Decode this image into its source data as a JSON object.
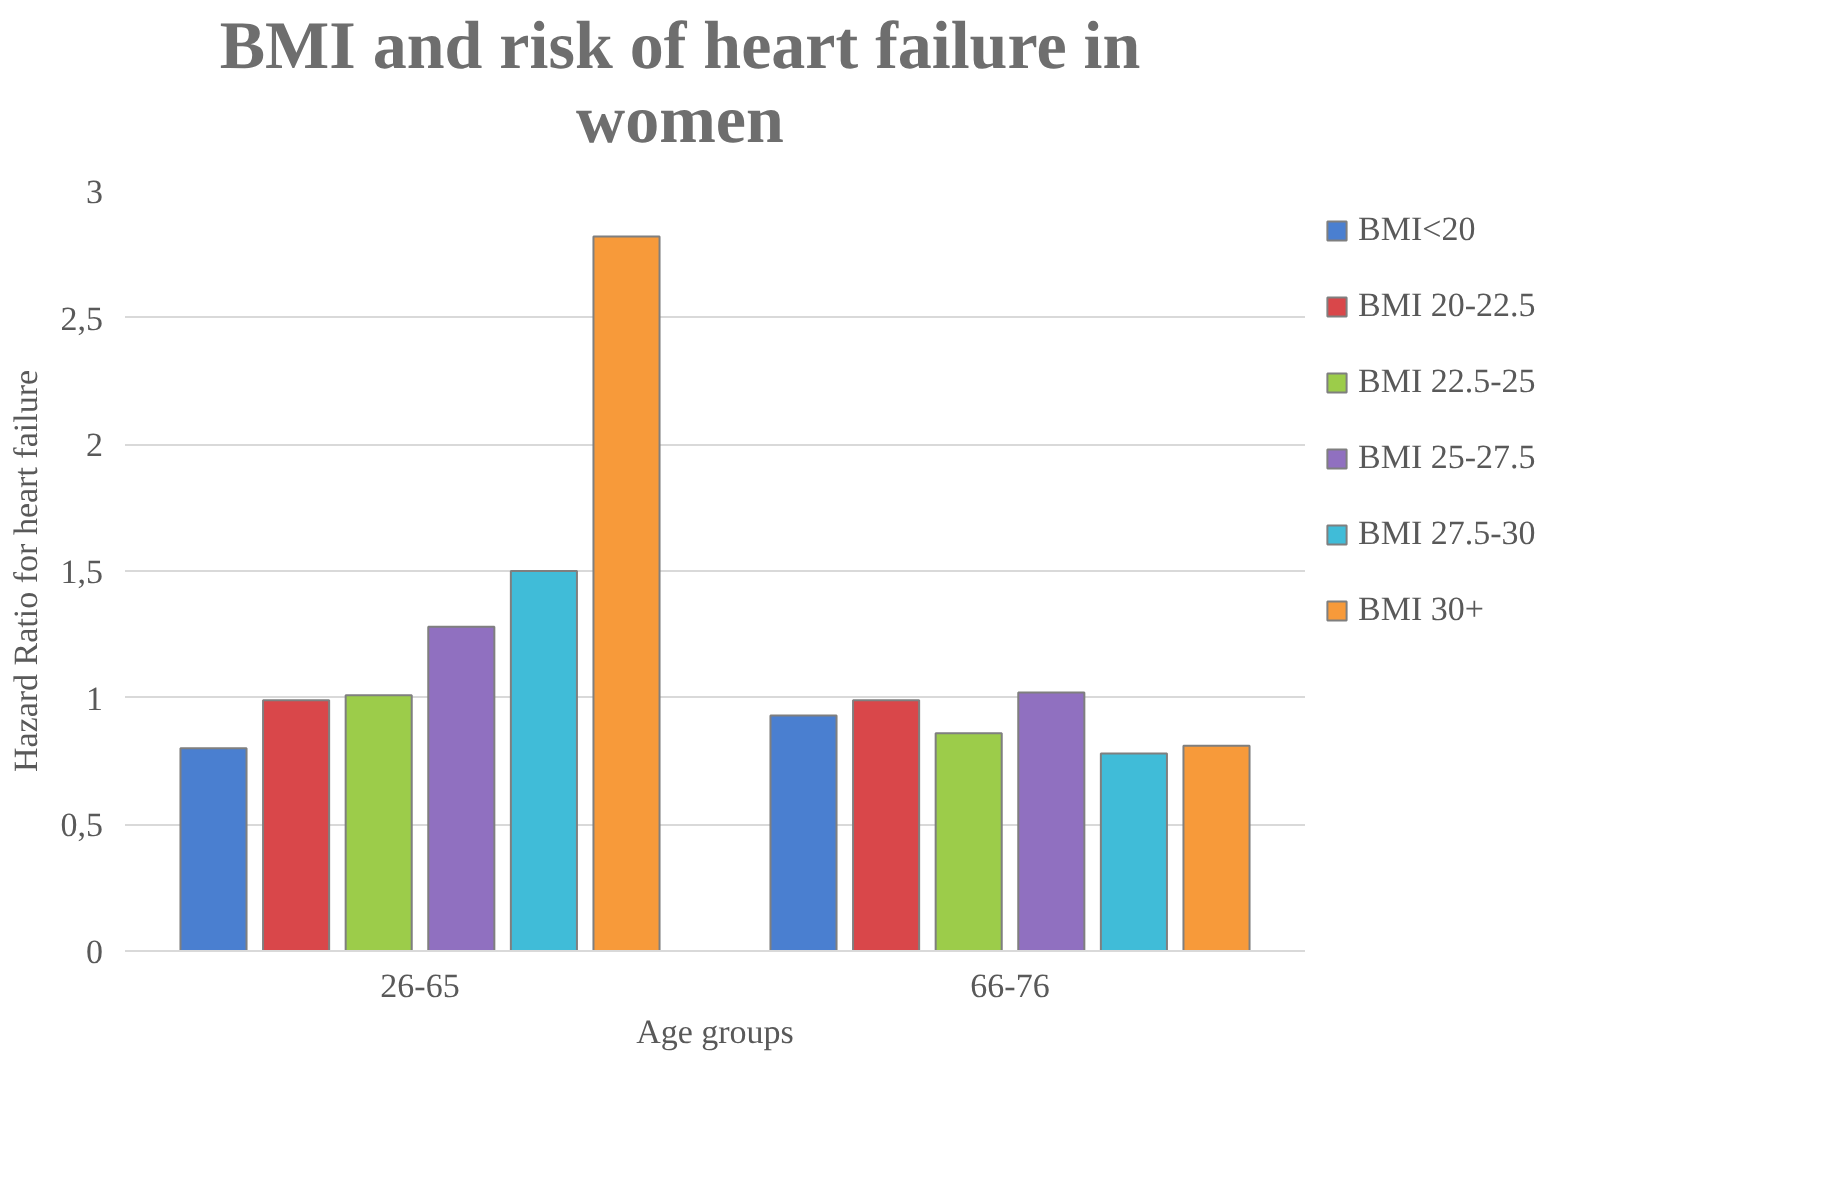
{
  "chart_data": {
    "type": "bar",
    "title": "BMI and risk of heart failure in\nwomen",
    "xlabel": "Age groups",
    "ylabel": "Hazard Ratio for heart failure",
    "categories": [
      "26-65",
      "66-76"
    ],
    "series": [
      {
        "name": "BMI<20",
        "color": "#4a7fd0",
        "values": [
          0.8,
          0.93
        ]
      },
      {
        "name": "BMI 20-22.5",
        "color": "#d9474a",
        "values": [
          0.99,
          0.99
        ]
      },
      {
        "name": "BMI 22.5-25",
        "color": "#9ccc4a",
        "values": [
          1.01,
          0.86
        ]
      },
      {
        "name": "BMI 25-27.5",
        "color": "#9070c0",
        "values": [
          1.28,
          1.02
        ]
      },
      {
        "name": "BMI 27.5-30",
        "color": "#40bcd8",
        "values": [
          1.5,
          0.78
        ]
      },
      {
        "name": "BMI 30+",
        "color": "#f79a3a",
        "values": [
          2.82,
          0.81
        ]
      }
    ],
    "ylim": [
      0,
      3
    ],
    "yticks": [
      0,
      {
        "value": 0.5,
        "label": "0,5"
      },
      1,
      {
        "value": 1.5,
        "label": "1,5"
      },
      2,
      {
        "value": 2.5,
        "label": "2,5"
      },
      3
    ],
    "grid": "y",
    "legend": "right"
  }
}
